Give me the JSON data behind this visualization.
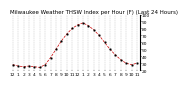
{
  "title": "Milwaukee Weather THSW Index per Hour (F) (Last 24 Hours)",
  "hours": [
    0,
    1,
    2,
    3,
    4,
    5,
    6,
    7,
    8,
    9,
    10,
    11,
    12,
    13,
    14,
    15,
    16,
    17,
    18,
    19,
    20,
    21,
    22,
    23
  ],
  "values": [
    28,
    26,
    25,
    26,
    25,
    24,
    28,
    38,
    50,
    62,
    72,
    80,
    85,
    88,
    84,
    78,
    70,
    60,
    50,
    42,
    35,
    30,
    28,
    30
  ],
  "ylim": [
    20,
    100
  ],
  "yticks": [
    20,
    30,
    40,
    50,
    60,
    70,
    80,
    90,
    100
  ],
  "xtick_labels": [
    "12",
    "1",
    "2",
    "3",
    "4",
    "5",
    "6",
    "7",
    "8",
    "9",
    "10",
    "11",
    "12",
    "1",
    "2",
    "3",
    "4",
    "5",
    "6",
    "7",
    "8",
    "9",
    "10",
    "11"
  ],
  "line_color": "#cc0000",
  "marker_color": "#000000",
  "bg_color": "#ffffff",
  "grid_color": "#aaaaaa",
  "title_fontsize": 4.0,
  "tick_fontsize": 3.2
}
